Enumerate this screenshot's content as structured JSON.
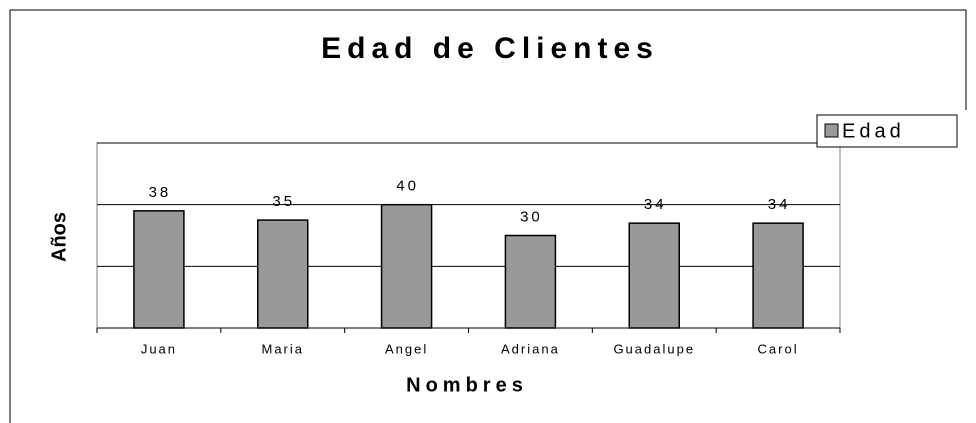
{
  "chart_data": {
    "type": "bar",
    "title": "Edad de Clientes",
    "x_label": "Nombres",
    "y_label": "Años",
    "categories": [
      "Juan",
      "Maria",
      "Angel",
      "Adriana",
      "Guadalupe",
      "Carol"
    ],
    "series": [
      {
        "name": "Edad",
        "color": "#999999",
        "values": [
          38,
          35,
          40,
          30,
          34,
          34
        ]
      }
    ],
    "ylim": [
      0,
      60
    ],
    "yticks": [
      0,
      20,
      40,
      60
    ],
    "grid": true,
    "legend": "right"
  }
}
